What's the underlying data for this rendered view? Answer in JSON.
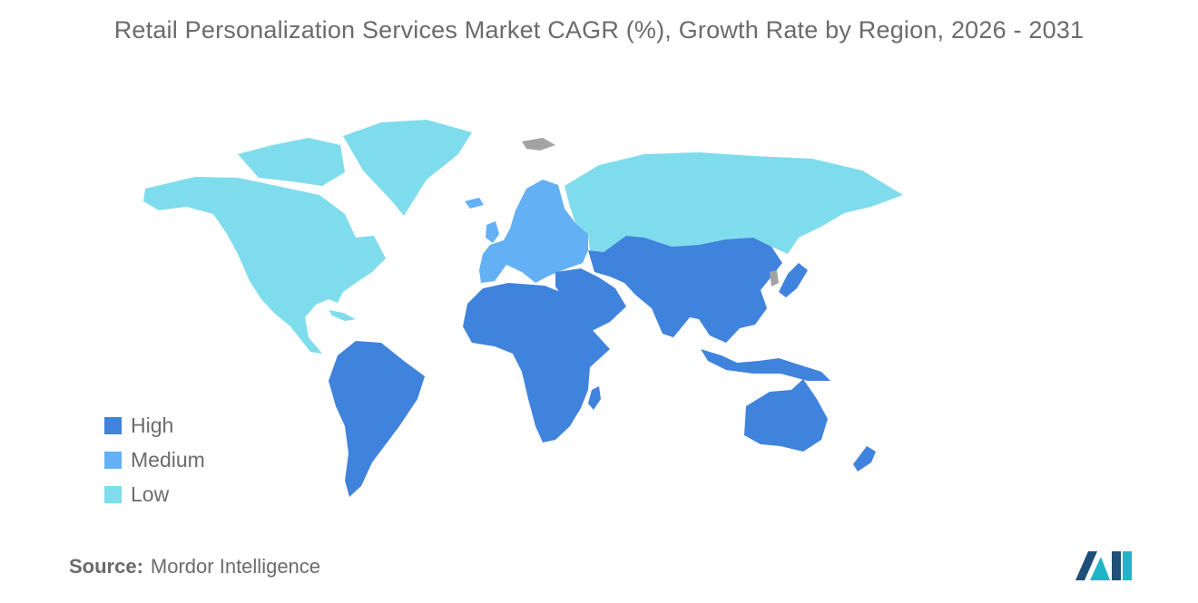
{
  "title": "Retail Personalization Services Market CAGR (%), Growth Rate by Region, 2026 - 2031",
  "colors": {
    "high": "#3f83dc",
    "medium": "#63b0f5",
    "low": "#7fdced",
    "no_data": "#a3a3a3",
    "logo_dark": "#1f4e79",
    "logo_teal": "#1fb5c7"
  },
  "legend": [
    {
      "label": "High",
      "color": "#3f83dc"
    },
    {
      "label": "Medium",
      "color": "#63b0f5"
    },
    {
      "label": "Low",
      "color": "#7fdced"
    }
  ],
  "regions": {
    "north_america": "Low",
    "europe": "Medium",
    "russia_central_asia": "Low",
    "asia_pacific": "High",
    "middle_east_africa": "High",
    "south_america": "High"
  },
  "source": {
    "label": "Source:",
    "value": "Mordor Intelligence"
  }
}
